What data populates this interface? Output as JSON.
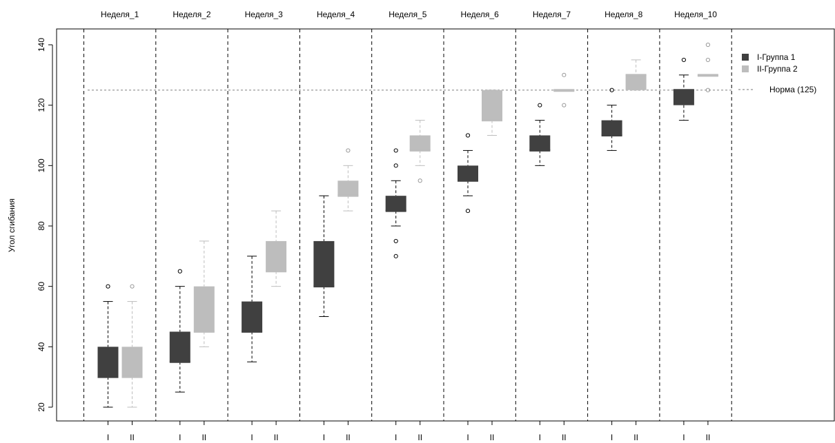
{
  "chart_data": {
    "type": "boxplot",
    "ylabel": "Угол сгибания",
    "ylim": [
      20,
      140
    ],
    "yticks": [
      20,
      40,
      60,
      80,
      100,
      120,
      140
    ],
    "group_labels": [
      "I",
      "II"
    ],
    "weeks": [
      "Неделя_1",
      "Неделя_2",
      "Неделя_3",
      "Неделя_4",
      "Неделя_5",
      "Неделя_6",
      "Неделя_7",
      "Неделя_8",
      "Неделя_10"
    ],
    "reference_line": {
      "value": 125,
      "label": "Норма (125)",
      "color": "#bbbbbb"
    },
    "legend": {
      "position": "top-right"
    },
    "series": [
      {
        "name": "I-Группа 1",
        "color": "#404040",
        "boxes": [
          {
            "min": 20,
            "q1": 30,
            "median": 30,
            "q3": 40,
            "max": 55,
            "outliers": [
              60
            ]
          },
          {
            "min": 25,
            "q1": 35,
            "median": 35,
            "q3": 45,
            "max": 60,
            "outliers": [
              65
            ]
          },
          {
            "min": 35,
            "q1": 45,
            "median": 45,
            "q3": 55,
            "max": 70,
            "outliers": []
          },
          {
            "min": 50,
            "q1": 60,
            "median": 60,
            "q3": 75,
            "max": 90,
            "outliers": []
          },
          {
            "min": 80,
            "q1": 85,
            "median": 85,
            "q3": 90,
            "max": 95,
            "outliers": [
              100,
              105,
              75,
              70
            ]
          },
          {
            "min": 90,
            "q1": 95,
            "median": 95,
            "q3": 100,
            "max": 105,
            "outliers": [
              110,
              85
            ]
          },
          {
            "min": 100,
            "q1": 105,
            "median": 105,
            "q3": 110,
            "max": 115,
            "outliers": [
              120
            ]
          },
          {
            "min": 105,
            "q1": 110,
            "median": 110,
            "q3": 115,
            "max": 120,
            "outliers": [
              125
            ]
          },
          {
            "min": 115,
            "q1": 120,
            "median": 125,
            "q3": 125,
            "max": 130,
            "outliers": [
              135
            ]
          }
        ]
      },
      {
        "name": "II-Группа 2",
        "color": "#bdbdbd",
        "boxes": [
          {
            "min": 20,
            "q1": 30,
            "median": 30,
            "q3": 40,
            "max": 55,
            "outliers": [
              60
            ]
          },
          {
            "min": 40,
            "q1": 45,
            "median": 45,
            "q3": 60,
            "max": 75,
            "outliers": []
          },
          {
            "min": 60,
            "q1": 65,
            "median": 65,
            "q3": 75,
            "max": 85,
            "outliers": []
          },
          {
            "min": 85,
            "q1": 90,
            "median": 90,
            "q3": 95,
            "max": 100,
            "outliers": [
              105
            ]
          },
          {
            "min": 100,
            "q1": 105,
            "median": 105,
            "q3": 110,
            "max": 115,
            "outliers": [
              95
            ]
          },
          {
            "min": 110,
            "q1": 115,
            "median": 115,
            "q3": 125,
            "max": 125,
            "outliers": []
          },
          {
            "min": 125,
            "q1": 125,
            "median": 125,
            "q3": 125,
            "max": 125,
            "outliers": [
              130,
              120
            ]
          },
          {
            "min": 125,
            "q1": 125,
            "median": 130,
            "q3": 130,
            "max": 135,
            "outliers": []
          },
          {
            "min": 130,
            "q1": 130,
            "median": 130,
            "q3": 130,
            "max": 130,
            "outliers": [
              140,
              135,
              125
            ]
          }
        ]
      }
    ]
  }
}
